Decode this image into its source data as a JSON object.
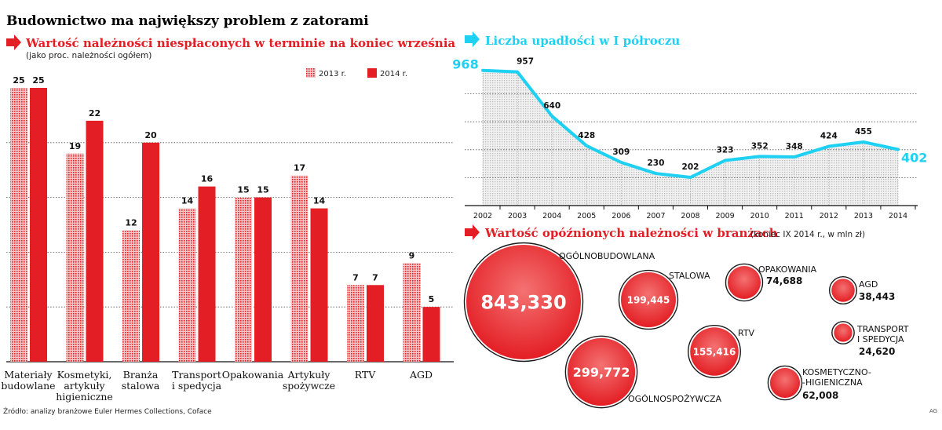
{
  "headline": "Budownictwo ma największy problem z zatorami",
  "colors": {
    "red": "#e31e24",
    "dark_red": "#b8141a",
    "cyan": "#1ed1f3",
    "bubble_light": "#f26b6b",
    "grid": "#555555"
  },
  "source": "Źródło: analizy branżowe Euler Hermes Collections, Coface",
  "credit": "AG",
  "chart_data": [
    {
      "type": "bar",
      "title": "Wartość należności niespłaconych w terminie na koniec września",
      "subtitle": "(jako proc. należności ogółem)",
      "categories": [
        "Materiały budowlane",
        "Kosmetyki, artykuły higieniczne",
        "Branża stalowa",
        "Transport i spedycja",
        "Opakowania",
        "Artykuły spożywcze",
        "RTV",
        "AGD"
      ],
      "series": [
        {
          "name": "2013 r.",
          "values": [
            25,
            19,
            12,
            14,
            15,
            17,
            7,
            9
          ]
        },
        {
          "name": "2014 r.",
          "values": [
            25,
            22,
            20,
            16,
            15,
            14,
            7,
            5
          ]
        }
      ],
      "ylim": [
        0,
        26
      ],
      "grid": true,
      "legend": "top-right"
    },
    {
      "type": "area",
      "title": "Liczba upadłości w I półroczu",
      "x": [
        "2002",
        "2003",
        "2004",
        "2005",
        "2006",
        "2007",
        "2008",
        "2009",
        "2010",
        "2011",
        "2012",
        "2013",
        "2014"
      ],
      "values": [
        968,
        957,
        640,
        428,
        309,
        230,
        202,
        323,
        352,
        348,
        424,
        455,
        402
      ],
      "ylim": [
        0,
        1000
      ],
      "grid": true
    },
    {
      "type": "bubble",
      "title": "Wartość opóźnionych należności w branżach",
      "subtitle": "(koniec IX 2014 r., w mln zł)",
      "items": [
        {
          "label": "OGÓLNOBUDOWLANA",
          "value": 843330,
          "display": "843,330"
        },
        {
          "label": "OGÓLNOSPOŻYWCZA",
          "value": 299772,
          "display": "299,772"
        },
        {
          "label": "STALOWA",
          "value": 199445,
          "display": "199,445"
        },
        {
          "label": "RTV",
          "value": 155416,
          "display": "155,416"
        },
        {
          "label": "OPAKOWANIA",
          "value": 74688,
          "display": "74,688"
        },
        {
          "label": "KOSMETYCZNO-HIGIENICZNA",
          "value": 62008,
          "display": "62,008"
        },
        {
          "label": "AGD",
          "value": 38443,
          "display": "38,443"
        },
        {
          "label": "TRANSPORT I SPEDYCJA",
          "value": 24620,
          "display": "24,620"
        }
      ]
    }
  ]
}
